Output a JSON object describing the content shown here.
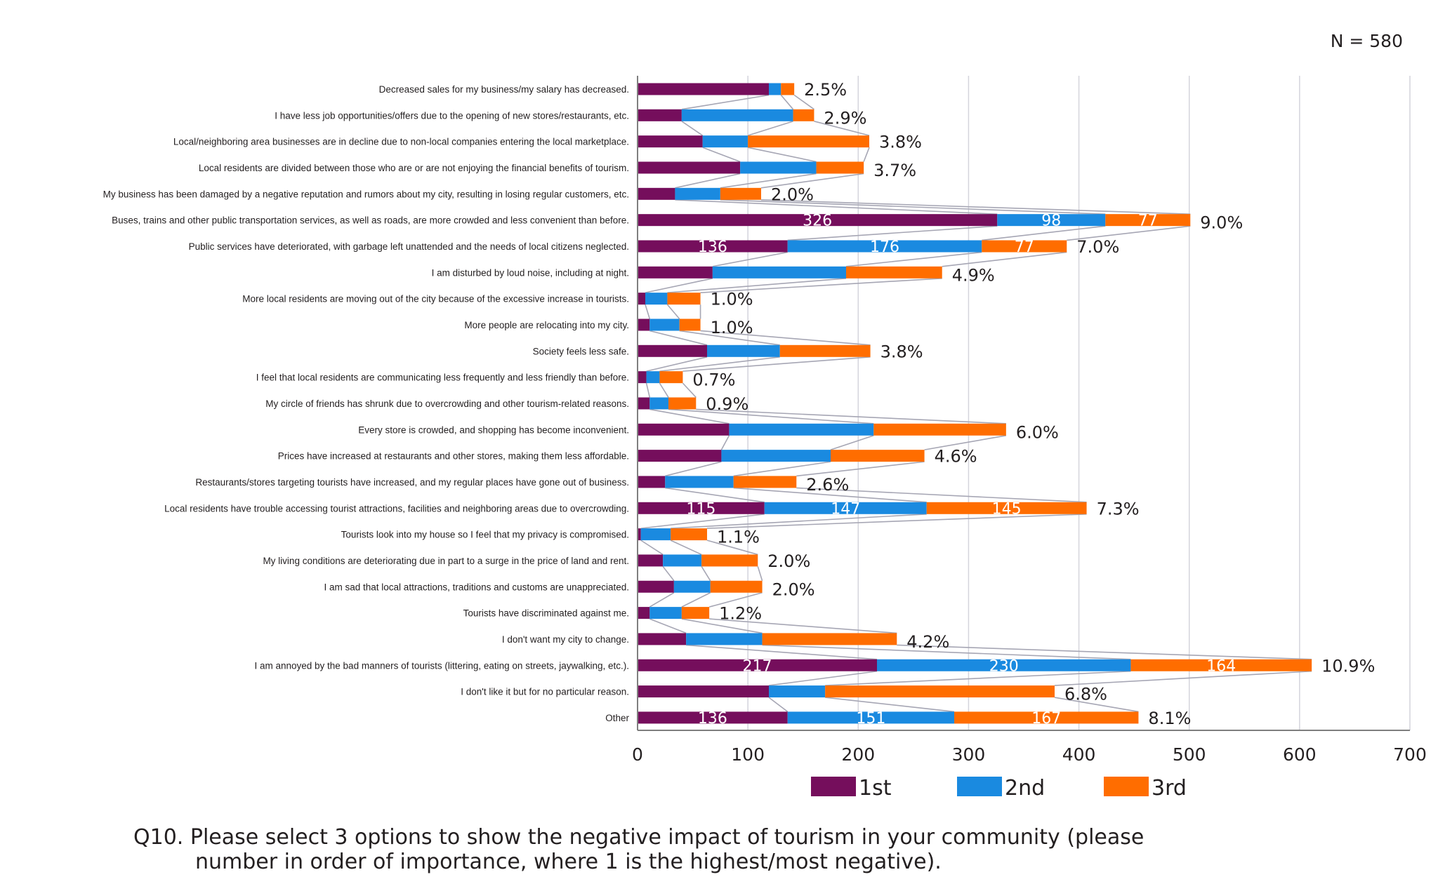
{
  "n_label": "N = 580",
  "caption": {
    "line1": "Q10. Please select 3 options to show the negative impact of tourism in your community (please",
    "line2": "number in order of importance, where 1 is the highest/most negative)."
  },
  "chart_data": {
    "type": "bar",
    "orientation": "horizontal",
    "stacked": true,
    "title": "",
    "xlabel": "",
    "ylabel": "",
    "xlim": [
      0,
      700
    ],
    "x_ticks": [
      0,
      100,
      200,
      300,
      400,
      500,
      600,
      700
    ],
    "grid": "vertical",
    "legend_position": "bottom",
    "series_lines": true,
    "categories": [
      "Decreased sales for my business/my salary has decreased.",
      "I have less job opportunities/offers due to the opening of new stores/restaurants, etc.",
      "Local/neighboring area businesses are in decline due to non-local companies entering the local marketplace.",
      "Local residents are divided between those who are or are not enjoying the financial benefits of tourism.",
      "My business has been damaged by a negative reputation and rumors about my city, resulting in losing regular customers, etc.",
      "Buses, trains and other public transportation services, as well as roads, are more crowded and less convenient than before.",
      "Public services have deteriorated, with garbage left unattended and the needs of local citizens neglected.",
      "I am disturbed by loud noise, including at night.",
      "More local residents are moving out of the city because of the excessive increase in tourists.",
      "More people are relocating into my city.",
      "Society feels less safe.",
      "I feel that local residents are communicating less frequently and less friendly than before.",
      "My circle of friends has shrunk due to overcrowding and other tourism-related reasons.",
      "Every store is crowded, and shopping has become inconvenient.",
      "Prices have increased at restaurants and other stores, making them less affordable.",
      "Restaurants/stores targeting tourists have increased, and my regular places have gone out of business.",
      "Local residents have trouble accessing tourist attractions, facilities and neighboring areas due to overcrowding.",
      "Tourists look into my house so I feel that my privacy is compromised.",
      "My living conditions are deteriorating due in part to a surge in the price of land and rent.",
      "I am sad that local attractions, traditions and customs are unappreciated.",
      "Tourists have discriminated against me.",
      "I don't want my city to change.",
      "I am annoyed by the bad manners of tourists (littering, eating on streets, jaywalking, etc.).",
      "I don't like it but for no particular reason.",
      "Other"
    ],
    "series": [
      {
        "name": "1st",
        "color": "#750e5c",
        "values": [
          119,
          40,
          59,
          93,
          34,
          326,
          136,
          68,
          7,
          11,
          63,
          8,
          11,
          83,
          76,
          25,
          115,
          3,
          23,
          33,
          11,
          44,
          217,
          119,
          136
        ]
      },
      {
        "name": "2nd",
        "color": "#1a8ae0",
        "values": [
          11,
          101,
          41,
          69,
          41,
          98,
          176,
          121,
          20,
          27,
          66,
          12,
          17,
          131,
          99,
          62,
          147,
          27,
          35,
          33,
          29,
          69,
          230,
          51,
          151
        ]
      },
      {
        "name": "3rd",
        "color": "#ff6d00",
        "values": [
          12,
          19,
          110,
          43,
          37,
          77,
          77,
          87,
          30,
          19,
          82,
          21,
          25,
          120,
          85,
          57,
          145,
          33,
          51,
          47,
          25,
          122,
          164,
          208,
          167
        ]
      }
    ],
    "data_labels_shown_for": [
      5,
      6,
      16,
      22,
      24
    ],
    "percent_labels": [
      "2.5%",
      "2.9%",
      "3.8%",
      "3.7%",
      "2.0%",
      "9.0%",
      "7.0%",
      "4.9%",
      "1.0%",
      "1.0%",
      "3.8%",
      "0.7%",
      "0.9%",
      "6.0%",
      "4.6%",
      "2.6%",
      "7.3%",
      "1.1%",
      "2.0%",
      "2.0%",
      "1.2%",
      "4.2%",
      "10.9%",
      "6.8%",
      "8.1%"
    ],
    "colors": {
      "gridline": "#d4d4dc",
      "axis": "#7f7f7f",
      "series_line": "#a6a6b4"
    }
  }
}
